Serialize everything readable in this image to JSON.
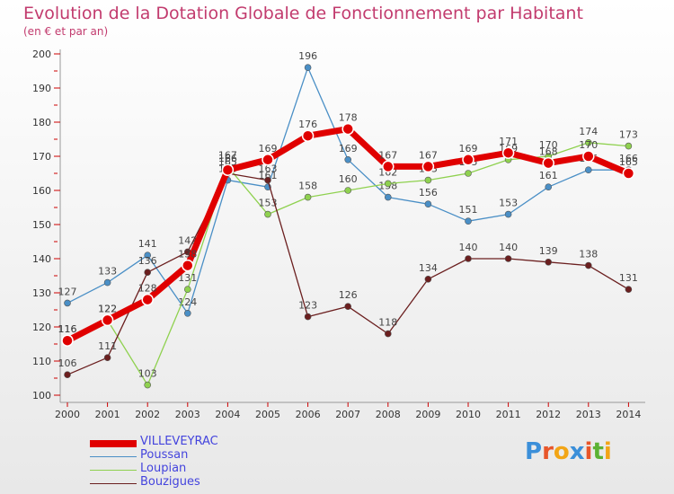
{
  "title": "Evolution de la Dotation Globale de Fonctionnement par Habitant",
  "subtitle": "(en € et par an)",
  "logo": "Proxiti",
  "chart_data": {
    "type": "line",
    "title": "Evolution de la Dotation Globale de Fonctionnement par Habitant",
    "subtitle": "(en € et par an)",
    "x": [
      "2000",
      "2001",
      "2002",
      "2003",
      "2004",
      "2005",
      "2006",
      "2007",
      "2008",
      "2009",
      "2010",
      "2011",
      "2012",
      "2013",
      "2014"
    ],
    "ylim": [
      100,
      200
    ],
    "yticks": [
      100,
      110,
      120,
      130,
      140,
      150,
      160,
      170,
      180,
      190,
      200
    ],
    "grid": false,
    "legend_position": "bottom-left",
    "series": [
      {
        "name": "VILLEVEYRAC",
        "color": "#e00000",
        "values": [
          116,
          122,
          128,
          138,
          166,
          169,
          176,
          178,
          167,
          167,
          169,
          171,
          168,
          170,
          165
        ]
      },
      {
        "name": "Poussan",
        "color": "#4a8fc6",
        "values": [
          127,
          133,
          141,
          124,
          163,
          161,
          196,
          169,
          158,
          156,
          151,
          153,
          161,
          166,
          166
        ]
      },
      {
        "name": "Loupian",
        "color": "#8fd14f",
        "values": [
          116,
          122,
          103,
          131,
          167,
          153,
          158,
          160,
          162,
          163,
          165,
          169,
          170,
          174,
          173
        ]
      },
      {
        "name": "Bouzigues",
        "color": "#6b1f1f",
        "values": [
          106,
          111,
          136,
          142,
          165,
          163,
          123,
          126,
          118,
          134,
          140,
          140,
          139,
          138,
          131
        ]
      }
    ]
  }
}
